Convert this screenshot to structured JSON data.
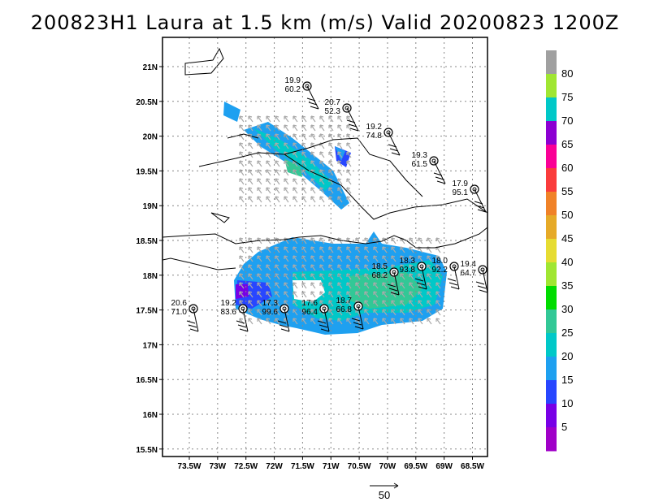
{
  "title": "200823H1 Laura at 1.5 km (m/s) Valid 20200823 1200Z",
  "lat_labels": [
    "21N",
    "20.5N",
    "20N",
    "19.5N",
    "19N",
    "18.5N",
    "18N",
    "17.5N",
    "17N",
    "16.5N",
    "16N",
    "15.5N"
  ],
  "lon_labels": [
    "73.5W",
    "73W",
    "72.5W",
    "72W",
    "71.5W",
    "71W",
    "70.5W",
    "70W",
    "69.5W",
    "69W",
    "68.5W"
  ],
  "colorbar": {
    "labels": [
      "80",
      "75",
      "70",
      "65",
      "60",
      "55",
      "50",
      "45",
      "40",
      "35",
      "30",
      "25",
      "20",
      "15",
      "10",
      "5"
    ],
    "colors": [
      "#a0a0a0",
      "#a0e632",
      "#00c8c8",
      "#8c00d2",
      "#fa0096",
      "#fa3c3c",
      "#f08228",
      "#e6aa28",
      "#e6dc32",
      "#a0e632",
      "#00dc00",
      "#32c896",
      "#00c8c8",
      "#1ea0f0",
      "#2846ff",
      "#7800e6",
      "#a000c8"
    ]
  },
  "stations": [
    {
      "lat": 19.9,
      "lon": -71.45,
      "top": "19.9",
      "bot": "60.2"
    },
    {
      "lat": 20.7,
      "lon": -70.85,
      "top": "20.7",
      "bot": "52.3"
    },
    {
      "lat": 19.2,
      "lon": -70.05,
      "top": "19.2",
      "bot": "74.8"
    },
    {
      "lat": 19.3,
      "lon": -69.25,
      "top": "19.3",
      "bot": "61.5"
    },
    {
      "lat": 17.9,
      "lon": -68.6,
      "top": "17.9",
      "bot": "95.1"
    },
    {
      "lat": 18.5,
      "lon": -69.95,
      "top": "18.5",
      "bot": "68.2"
    },
    {
      "lat": 18.3,
      "lon": -69.5,
      "top": "18.3",
      "bot": "93.8"
    },
    {
      "lat": 18.0,
      "lon": -68.95,
      "top": "18.0",
      "bot": "92.2"
    },
    {
      "lat": 19.4,
      "lon": -68.5,
      "top": "19.4",
      "bot": "64.7"
    },
    {
      "lat": 20.6,
      "lon": -73.5,
      "top": "20.6",
      "bot": "71.0"
    },
    {
      "lat": 19.2,
      "lon": -72.6,
      "top": "19.2",
      "bot": "83.6"
    },
    {
      "lat": 17.3,
      "lon": -71.9,
      "top": "17.3",
      "bot": "99.6"
    },
    {
      "lat": 17.6,
      "lon": -71.2,
      "top": "17.6",
      "bot": "96.4"
    },
    {
      "lat": 18.7,
      "lon": -70.6,
      "top": "18.7",
      "bot": "66.8"
    }
  ],
  "reference_vector_label": "50"
}
